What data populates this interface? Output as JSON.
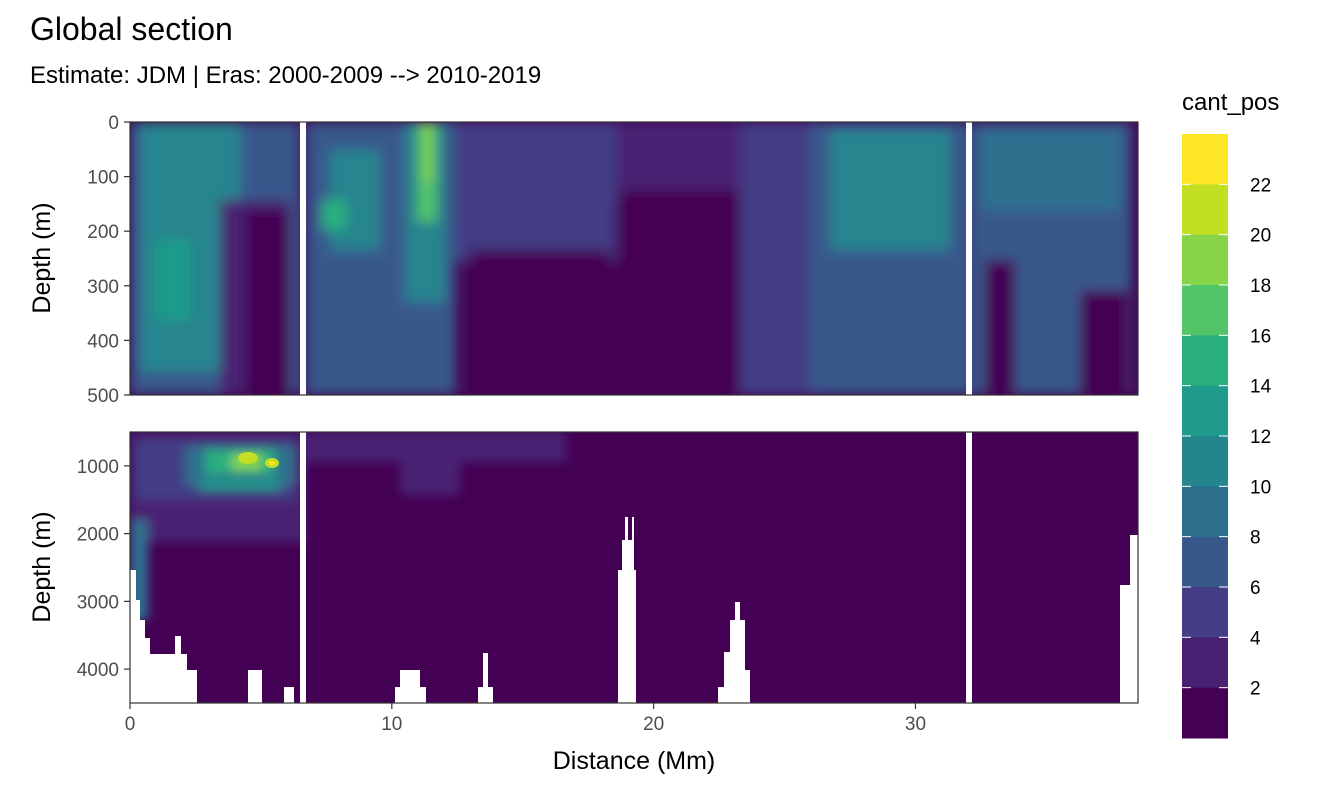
{
  "chart_data": {
    "type": "heatmap",
    "title": "Global section",
    "subtitle": "Estimate: JDM  | Eras: 2000-2009 --> 2010-2019",
    "xlabel": "Distance (Mm)",
    "ylabel": "Depth (m)",
    "xlim": [
      0,
      38.5
    ],
    "x_ticks": [
      0,
      10,
      20,
      30
    ],
    "panels": [
      {
        "ylim": [
          0,
          500
        ],
        "y_ticks": [
          0,
          100,
          200,
          300,
          400,
          500
        ]
      },
      {
        "ylim": [
          500,
          4500
        ],
        "y_ticks": [
          1000,
          2000,
          3000,
          4000
        ]
      }
    ],
    "gaps_distance": [
      6.6,
      32.1
    ],
    "legend": {
      "title": "cant_pos",
      "placement": "right",
      "levels": [
        22,
        20,
        18,
        16,
        14,
        12,
        10,
        8,
        6,
        4,
        2,
        0
      ],
      "labels": [
        "22",
        "20",
        "18",
        "16",
        "14",
        "12",
        "10",
        "8",
        "6",
        "4",
        "2"
      ],
      "colors": [
        "#FDE725",
        "#C2DF23",
        "#86D549",
        "#52C569",
        "#2AB07F",
        "#1E9B8A",
        "#25858E",
        "#2D708E",
        "#38588C",
        "#433E85",
        "#482173",
        "#440154"
      ]
    }
  }
}
